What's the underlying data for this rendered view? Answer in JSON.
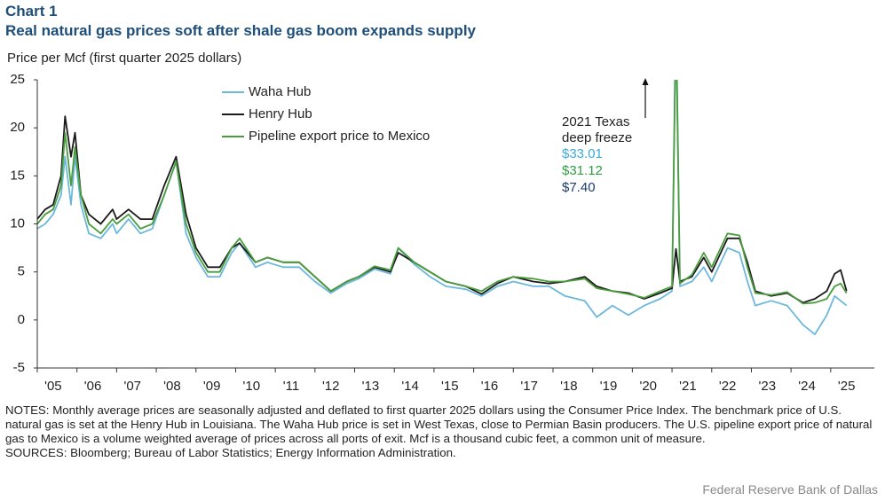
{
  "chart_data": {
    "type": "line",
    "chart_label": "Chart 1",
    "title": "Real natural gas prices soft after shale gas boom expands supply",
    "y_axis_label": "Price per Mcf (first quarter 2025 dollars)",
    "x": [
      2005.0,
      2005.2,
      2005.4,
      2005.6,
      2005.7,
      2005.85,
      2005.95,
      2006.1,
      2006.3,
      2006.6,
      2006.9,
      2007.0,
      2007.3,
      2007.6,
      2007.9,
      2008.2,
      2008.5,
      2008.75,
      2009.0,
      2009.3,
      2009.6,
      2009.9,
      2010.1,
      2010.5,
      2010.8,
      2011.2,
      2011.6,
      2012.0,
      2012.4,
      2012.8,
      2013.1,
      2013.5,
      2013.9,
      2014.1,
      2014.5,
      2014.9,
      2015.3,
      2015.8,
      2016.2,
      2016.6,
      2017.0,
      2017.5,
      2017.9,
      2018.3,
      2018.8,
      2019.1,
      2019.5,
      2019.9,
      2020.3,
      2020.7,
      2021.0,
      2021.1,
      2021.2,
      2021.5,
      2021.8,
      2022.0,
      2022.4,
      2022.7,
      2022.9,
      2023.1,
      2023.5,
      2023.9,
      2024.3,
      2024.6,
      2024.9,
      2025.1,
      2025.25,
      2025.4
    ],
    "series": [
      {
        "name": "Waha Hub",
        "color": "#6bb8dc",
        "label_color": "#3aa9d6",
        "values": [
          9.5,
          10,
          11,
          13,
          17,
          12,
          17,
          12,
          9,
          8.5,
          10,
          9,
          10.5,
          9,
          9.5,
          13,
          16.5,
          9,
          6.5,
          4.5,
          4.5,
          7,
          8,
          5.5,
          6,
          5.5,
          5.5,
          4,
          2.8,
          3.8,
          4.3,
          5.3,
          4.8,
          7.5,
          5.8,
          4.5,
          3.5,
          3.2,
          2.5,
          3.5,
          4,
          3.5,
          3.5,
          2.5,
          2,
          0.3,
          1.5,
          0.5,
          1.5,
          2.2,
          3,
          33.01,
          3.5,
          4,
          5.5,
          4,
          7.5,
          7,
          4,
          1.5,
          2,
          1.5,
          -0.5,
          -1.5,
          0.5,
          2.5,
          2,
          1.5
        ],
        "value_labels": [
          null,
          null,
          null,
          null,
          null,
          null,
          null,
          null,
          null,
          null,
          null,
          null,
          null,
          null,
          null,
          null,
          null,
          null,
          null,
          null,
          null,
          null,
          null,
          null,
          null,
          null,
          null,
          null,
          null,
          null,
          null,
          null,
          null,
          null,
          null,
          null,
          null,
          null,
          null,
          null,
          null,
          null,
          null,
          null,
          null,
          null,
          null,
          null,
          null,
          null,
          null,
          "$33.01",
          null,
          null,
          null,
          null,
          null,
          null,
          null,
          null,
          null,
          null,
          null,
          null,
          null,
          null,
          null,
          null
        ]
      },
      {
        "name": "Henry Hub",
        "color": "#1a1a1a",
        "label_color": "#1b3a6b",
        "values": [
          10.5,
          11.5,
          12,
          15,
          21.2,
          17,
          19.5,
          13,
          11,
          10,
          11.5,
          10.5,
          11.5,
          10.5,
          10.5,
          14,
          17,
          11,
          7.5,
          5.5,
          5.5,
          7.5,
          8,
          6,
          6.5,
          6,
          6,
          4.5,
          3,
          4,
          4.5,
          5.5,
          5,
          7,
          6,
          5,
          4,
          3.5,
          2.7,
          3.8,
          4.5,
          4,
          3.8,
          4,
          4.5,
          3.5,
          3,
          2.8,
          2.2,
          2.8,
          3.3,
          7.4,
          4,
          4.5,
          6.5,
          5,
          8.5,
          8.5,
          6,
          3,
          2.5,
          2.8,
          1.8,
          2.2,
          3,
          4.8,
          5.2,
          3
        ],
        "value_labels": [
          null,
          null,
          null,
          null,
          null,
          null,
          null,
          null,
          null,
          null,
          null,
          null,
          null,
          null,
          null,
          null,
          null,
          null,
          null,
          null,
          null,
          null,
          null,
          null,
          null,
          null,
          null,
          null,
          null,
          null,
          null,
          null,
          null,
          null,
          null,
          null,
          null,
          null,
          null,
          null,
          null,
          null,
          null,
          null,
          null,
          null,
          null,
          null,
          null,
          null,
          null,
          "$7.40",
          null,
          null,
          null,
          null,
          null,
          null,
          null,
          null,
          null,
          null,
          null,
          null,
          null,
          null,
          null,
          null
        ]
      },
      {
        "name": "Pipeline export price to Mexico",
        "color": "#4a9c3c",
        "label_color": "#2e9e45",
        "values": [
          10,
          11,
          11.5,
          14,
          19.5,
          14,
          18,
          13,
          10,
          9,
          10.5,
          10,
          11,
          9.5,
          10,
          13,
          16.5,
          10,
          7,
          5,
          5,
          7.5,
          8.5,
          6,
          6.5,
          6,
          6,
          4.5,
          3,
          4,
          4.5,
          5.6,
          5.2,
          7.5,
          6,
          5,
          4,
          3.5,
          3,
          4,
          4.5,
          4.3,
          4,
          4,
          4.3,
          3.3,
          3,
          2.7,
          2.3,
          3,
          3.5,
          31.12,
          3.8,
          4.7,
          7,
          5.5,
          9,
          8.8,
          5.5,
          2.8,
          2.6,
          2.9,
          1.7,
          1.8,
          2.2,
          3.5,
          3.8,
          2.8
        ],
        "value_labels": [
          null,
          null,
          null,
          null,
          null,
          null,
          null,
          null,
          null,
          null,
          null,
          null,
          null,
          null,
          null,
          null,
          null,
          null,
          null,
          null,
          null,
          null,
          null,
          null,
          null,
          null,
          null,
          null,
          null,
          null,
          null,
          null,
          null,
          null,
          null,
          null,
          null,
          null,
          null,
          null,
          null,
          null,
          null,
          null,
          null,
          null,
          null,
          null,
          null,
          null,
          null,
          "$31.12",
          null,
          null,
          null,
          null,
          null,
          null,
          null,
          null,
          null,
          null,
          null,
          null,
          null,
          null,
          null,
          null
        ]
      }
    ],
    "annotation": [
      "2021 Texas",
      "deep freeze"
    ],
    "ylim": [
      -5,
      25
    ],
    "yticks": [
      -5,
      0,
      5,
      10,
      15,
      20,
      25
    ],
    "xlim": [
      2005,
      2026.1
    ],
    "xticks": [
      {
        "value": 2005,
        "label": "'05"
      },
      {
        "value": 2006,
        "label": "'06"
      },
      {
        "value": 2007,
        "label": "'07"
      },
      {
        "value": 2008,
        "label": "'08"
      },
      {
        "value": 2009,
        "label": "'09"
      },
      {
        "value": 2010,
        "label": "'10"
      },
      {
        "value": 2011,
        "label": "'11"
      },
      {
        "value": 2012,
        "label": "'12"
      },
      {
        "value": 2013,
        "label": "'13"
      },
      {
        "value": 2014,
        "label": "'14"
      },
      {
        "value": 2015,
        "label": "'15"
      },
      {
        "value": 2016,
        "label": "'16"
      },
      {
        "value": 2017,
        "label": "'17"
      },
      {
        "value": 2018,
        "label": "'18"
      },
      {
        "value": 2019,
        "label": "'19"
      },
      {
        "value": 2020,
        "label": "'20"
      },
      {
        "value": 2021,
        "label": "'21"
      },
      {
        "value": 2022,
        "label": "'22"
      },
      {
        "value": 2023,
        "label": "'23"
      },
      {
        "value": 2024,
        "label": "'24"
      },
      {
        "value": 2025,
        "label": "'25"
      }
    ],
    "grid": false,
    "notes": "NOTES: Monthly average prices are seasonally adjusted and deflated to first quarter 2025 dollars using the Consumer Price Index. The benchmark price of U.S. natural gas is set at the Henry Hub in Louisiana. The Waha Hub price is set in West Texas, close to Permian Basin producers. The U.S. pipeline export price of natural gas to Mexico is a volume weighted average of prices across all ports of exit. Mcf is a thousand cubic feet, a common unit of measure.",
    "sources": "SOURCES: Bloomberg; Bureau of Labor Statistics; Energy Information Administration.",
    "footer": "Federal Reserve Bank of Dallas"
  }
}
